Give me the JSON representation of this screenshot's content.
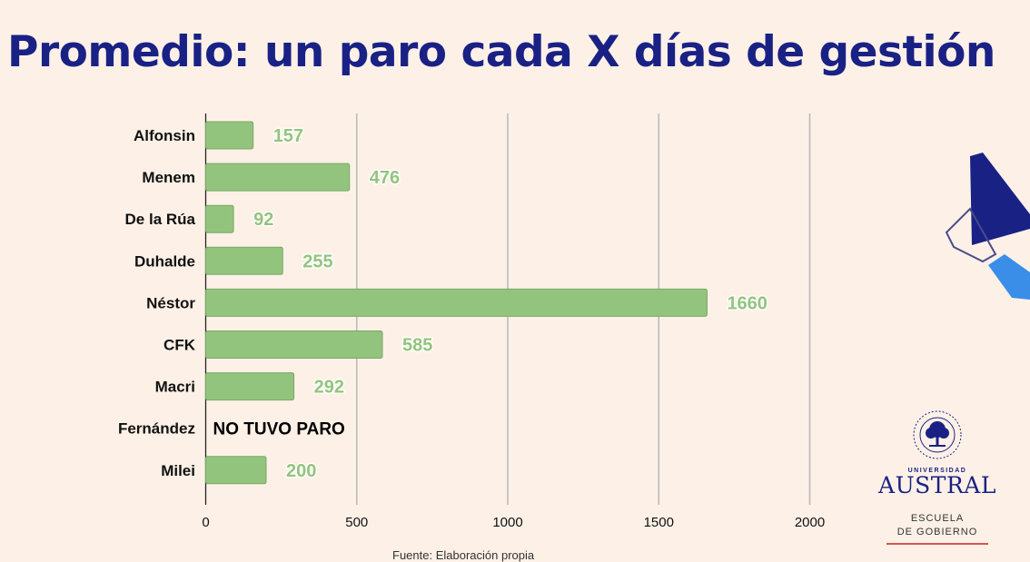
{
  "title": "Promedio: un paro cada X días de gestión",
  "source": "Fuente: Elaboración propia",
  "logo": {
    "subtitle": "UNIVERSIDAD",
    "name": "AUSTRAL",
    "school_line1": "ESCUELA",
    "school_line2": "DE GOBIERNO",
    "seal_icon": "university-seal-tree-icon"
  },
  "colors": {
    "title": "#1a2185",
    "bar": "#93c47d",
    "background": "#fdf1e7",
    "grid": "#bbbbbb"
  },
  "chart_data": {
    "type": "bar",
    "orientation": "horizontal",
    "categories": [
      "Alfonsin",
      "Menem",
      "De la Rúa",
      "Duhalde",
      "Néstor",
      "CFK",
      "Macri",
      "Fernández",
      "Milei"
    ],
    "values": [
      157,
      476,
      92,
      255,
      1660,
      585,
      292,
      null,
      200
    ],
    "annotations": [
      {
        "category": "Fernández",
        "text": "NO TUVO PARO"
      }
    ],
    "xlim": [
      0,
      2000
    ],
    "xticks": [
      0,
      500,
      1000,
      1500,
      2000
    ],
    "grid": true
  }
}
